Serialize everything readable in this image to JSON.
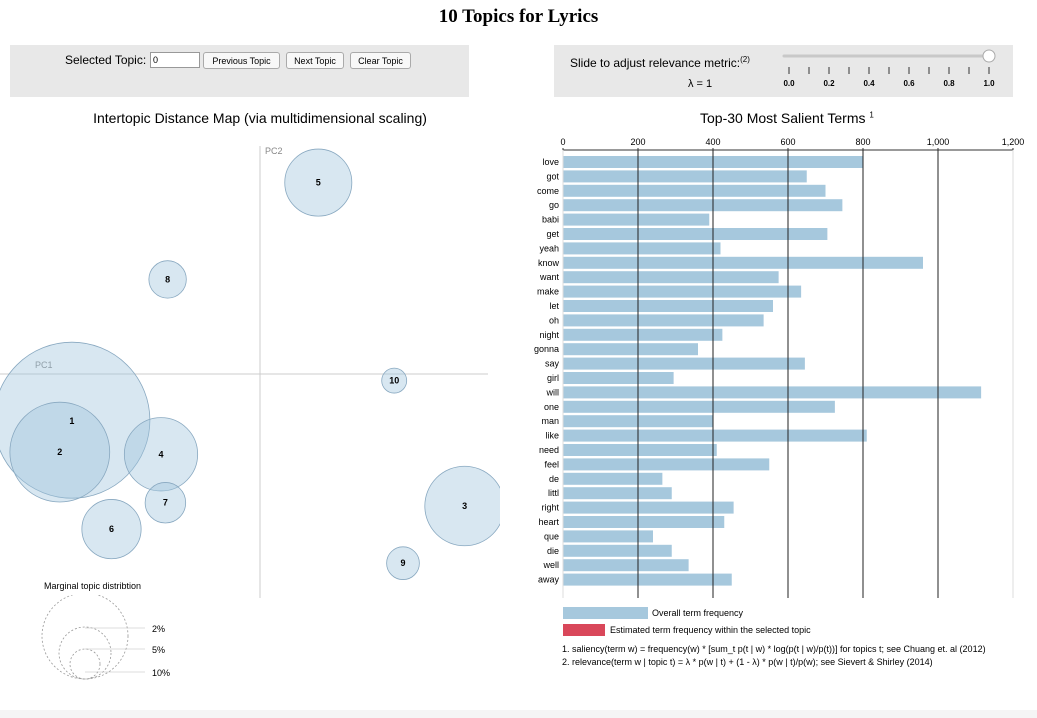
{
  "app_title": "10 Topics for Lyrics",
  "topic_controls": {
    "selected_label": "Selected Topic:",
    "selected_value": "0",
    "prev_label": "Previous Topic",
    "next_label": "Next Topic",
    "clear_label": "Clear Topic"
  },
  "relevance": {
    "label": "Slide to adjust relevance metric:",
    "label_sup": "(2)",
    "lambda_label": "λ = 1",
    "value": 1,
    "ticks": [
      "0.0",
      "0.2",
      "0.4",
      "0.6",
      "0.8",
      "1.0"
    ]
  },
  "intertopic": {
    "title": "Intertopic Distance Map (via multidimensional scaling)",
    "pc1_label": "PC1",
    "pc2_label": "PC2",
    "topics": [
      {
        "label": "1",
        "x": -1.71,
        "y": -0.42,
        "size": 1.0
      },
      {
        "label": "2",
        "x": -1.82,
        "y": -0.71,
        "size": 0.64
      },
      {
        "label": "3",
        "x": 1.86,
        "y": -1.2,
        "size": 0.51
      },
      {
        "label": "4",
        "x": -0.9,
        "y": -0.73,
        "size": 0.47
      },
      {
        "label": "5",
        "x": 0.53,
        "y": 1.74,
        "size": 0.43
      },
      {
        "label": "6",
        "x": -1.35,
        "y": -1.41,
        "size": 0.38
      },
      {
        "label": "7",
        "x": -0.86,
        "y": -1.17,
        "size": 0.26
      },
      {
        "label": "8",
        "x": -0.84,
        "y": 0.86,
        "size": 0.24
      },
      {
        "label": "9",
        "x": 1.3,
        "y": -1.72,
        "size": 0.21
      },
      {
        "label": "10",
        "x": 1.22,
        "y": -0.06,
        "size": 0.16
      }
    ],
    "marginal": {
      "title": "Marginal topic distribtion",
      "levels": [
        "2%",
        "5%",
        "10%"
      ]
    }
  },
  "terms": {
    "title": "Top-30 Most Salient Terms",
    "title_sup": "1",
    "axis_ticks": [
      "0",
      "200",
      "400",
      "600",
      "800",
      "1,000",
      "1,200"
    ],
    "xlim": [
      0,
      1200
    ],
    "bar_color": "#a6c8dd",
    "selected_color": "#d9475a",
    "chart_data": {
      "type": "bar",
      "categories": [
        "love",
        "got",
        "come",
        "go",
        "babi",
        "get",
        "yeah",
        "know",
        "want",
        "make",
        "let",
        "oh",
        "night",
        "gonna",
        "say",
        "girl",
        "will",
        "one",
        "man",
        "like",
        "need",
        "feel",
        "de",
        "littl",
        "right",
        "heart",
        "que",
        "die",
        "well",
        "away"
      ],
      "values": [
        800,
        650,
        700,
        745,
        390,
        705,
        420,
        960,
        575,
        635,
        560,
        535,
        425,
        360,
        645,
        295,
        1115,
        725,
        400,
        810,
        410,
        550,
        265,
        290,
        455,
        430,
        240,
        290,
        335,
        450
      ],
      "xlim": [
        0,
        1200
      ]
    },
    "legend": {
      "overall": "Overall term frequency",
      "estimated": "Estimated term frequency within the selected topic"
    },
    "notes": [
      "1. saliency(term w) = frequency(w) * [sum_t p(t | w) * log(p(t | w)/p(t))] for topics t; see Chuang et. al (2012)",
      "2. relevance(term w | topic t) = λ * p(w | t) + (1 - λ) * p(w | t)/p(w); see Sievert & Shirley (2014)"
    ]
  }
}
